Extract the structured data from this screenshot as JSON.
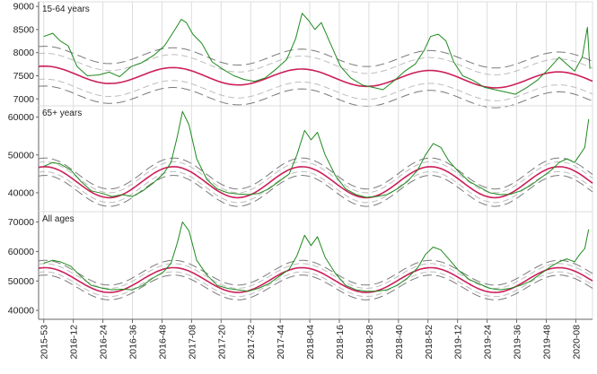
{
  "chart_data": [
    {
      "type": "line",
      "title": "15-64 years",
      "ylim": [
        6850,
        9100
      ],
      "yticks": [
        7000,
        7500,
        8000,
        8500,
        9000
      ],
      "y_tick_labels": [
        "7000",
        "7500",
        "8000",
        "8500",
        "9000"
      ],
      "baseline": {
        "mean": 7530,
        "amplitude": 180,
        "trend_per_week": -0.6
      },
      "threshold_bands": [
        {
          "kind": "inner",
          "offset": 280
        },
        {
          "kind": "outer",
          "offset": 430
        }
      ],
      "observed": [
        [
          2015.99,
          8350
        ],
        [
          2016.06,
          8420
        ],
        [
          2016.12,
          8250
        ],
        [
          2016.18,
          8150
        ],
        [
          2016.25,
          7700
        ],
        [
          2016.33,
          7500
        ],
        [
          2016.42,
          7520
        ],
        [
          2016.5,
          7580
        ],
        [
          2016.58,
          7480
        ],
        [
          2016.67,
          7700
        ],
        [
          2016.75,
          7780
        ],
        [
          2016.85,
          7950
        ],
        [
          2016.93,
          8150
        ],
        [
          2017.0,
          8450
        ],
        [
          2017.06,
          8720
        ],
        [
          2017.1,
          8650
        ],
        [
          2017.15,
          8400
        ],
        [
          2017.22,
          8200
        ],
        [
          2017.3,
          7800
        ],
        [
          2017.38,
          7650
        ],
        [
          2017.47,
          7500
        ],
        [
          2017.55,
          7420
        ],
        [
          2017.63,
          7380
        ],
        [
          2017.71,
          7450
        ],
        [
          2017.8,
          7650
        ],
        [
          2017.88,
          7850
        ],
        [
          2017.95,
          8300
        ],
        [
          2018.0,
          8850
        ],
        [
          2018.05,
          8700
        ],
        [
          2018.1,
          8500
        ],
        [
          2018.15,
          8650
        ],
        [
          2018.22,
          8200
        ],
        [
          2018.3,
          7700
        ],
        [
          2018.38,
          7450
        ],
        [
          2018.47,
          7300
        ],
        [
          2018.55,
          7250
        ],
        [
          2018.63,
          7200
        ],
        [
          2018.72,
          7400
        ],
        [
          2018.8,
          7600
        ],
        [
          2018.88,
          7750
        ],
        [
          2018.95,
          8050
        ],
        [
          2019.0,
          8350
        ],
        [
          2019.06,
          8400
        ],
        [
          2019.12,
          8250
        ],
        [
          2019.18,
          7800
        ],
        [
          2019.25,
          7500
        ],
        [
          2019.33,
          7400
        ],
        [
          2019.42,
          7250
        ],
        [
          2019.5,
          7200
        ],
        [
          2019.58,
          7150
        ],
        [
          2019.66,
          7100
        ],
        [
          2019.75,
          7250
        ],
        [
          2019.83,
          7400
        ],
        [
          2019.92,
          7650
        ],
        [
          2020.0,
          7900
        ],
        [
          2020.06,
          7750
        ],
        [
          2020.12,
          7600
        ],
        [
          2020.18,
          7900
        ],
        [
          2020.22,
          8550
        ],
        [
          2020.24,
          7650
        ]
      ]
    },
    {
      "type": "line",
      "title": "65+ years",
      "ylim": [
        35000,
        63000
      ],
      "yticks": [
        40000,
        50000,
        60000
      ],
      "y_tick_labels": [
        "40000",
        "50000",
        "60000"
      ],
      "baseline": {
        "mean": 42800,
        "amplitude": 4100,
        "trend_per_week": 0
      },
      "threshold_bands": [
        {
          "kind": "inner",
          "offset": 1300
        },
        {
          "kind": "outer",
          "offset": 2300
        }
      ],
      "observed": [
        [
          2015.99,
          47000
        ],
        [
          2016.06,
          48000
        ],
        [
          2016.12,
          47600
        ],
        [
          2016.2,
          46000
        ],
        [
          2016.28,
          43000
        ],
        [
          2016.36,
          40500
        ],
        [
          2016.45,
          39800
        ],
        [
          2016.52,
          39000
        ],
        [
          2016.6,
          39500
        ],
        [
          2016.68,
          39000
        ],
        [
          2016.76,
          40500
        ],
        [
          2016.84,
          42500
        ],
        [
          2016.92,
          45000
        ],
        [
          2016.98,
          48000
        ],
        [
          2017.03,
          55000
        ],
        [
          2017.07,
          61500
        ],
        [
          2017.12,
          58000
        ],
        [
          2017.18,
          49000
        ],
        [
          2017.26,
          43500
        ],
        [
          2017.34,
          41000
        ],
        [
          2017.42,
          40000
        ],
        [
          2017.5,
          39700
        ],
        [
          2017.58,
          39500
        ],
        [
          2017.66,
          39800
        ],
        [
          2017.74,
          41000
        ],
        [
          2017.82,
          43000
        ],
        [
          2017.9,
          45000
        ],
        [
          2017.96,
          50000
        ],
        [
          2018.02,
          56500
        ],
        [
          2018.07,
          54000
        ],
        [
          2018.12,
          56000
        ],
        [
          2018.18,
          50000
        ],
        [
          2018.26,
          44500
        ],
        [
          2018.34,
          41000
        ],
        [
          2018.42,
          39500
        ],
        [
          2018.5,
          38800
        ],
        [
          2018.58,
          39000
        ],
        [
          2018.66,
          39500
        ],
        [
          2018.74,
          41000
        ],
        [
          2018.82,
          43000
        ],
        [
          2018.9,
          46000
        ],
        [
          2018.96,
          50000
        ],
        [
          2019.02,
          53000
        ],
        [
          2019.08,
          52000
        ],
        [
          2019.14,
          48500
        ],
        [
          2019.22,
          45500
        ],
        [
          2019.3,
          43000
        ],
        [
          2019.38,
          41500
        ],
        [
          2019.46,
          40000
        ],
        [
          2019.54,
          39500
        ],
        [
          2019.62,
          39600
        ],
        [
          2019.7,
          40500
        ],
        [
          2019.78,
          42000
        ],
        [
          2019.86,
          44000
        ],
        [
          2019.94,
          46000
        ],
        [
          2020.0,
          48000
        ],
        [
          2020.06,
          49000
        ],
        [
          2020.12,
          48000
        ],
        [
          2020.16,
          50000
        ],
        [
          2020.2,
          52000
        ],
        [
          2020.23,
          59500
        ]
      ]
    },
    {
      "type": "line",
      "title": "All ages",
      "ylim": [
        37000,
        73500
      ],
      "yticks": [
        40000,
        50000,
        60000,
        70000
      ],
      "y_tick_labels": [
        "40000",
        "50000",
        "60000",
        "70000"
      ],
      "baseline": {
        "mean": 50300,
        "amplitude": 4200,
        "trend_per_week": 0
      },
      "threshold_bands": [
        {
          "kind": "inner",
          "offset": 1400
        },
        {
          "kind": "outer",
          "offset": 2500
        }
      ],
      "observed": [
        [
          2015.99,
          56000
        ],
        [
          2016.06,
          57000
        ],
        [
          2016.12,
          56500
        ],
        [
          2016.2,
          55000
        ],
        [
          2016.28,
          51500
        ],
        [
          2016.36,
          48500
        ],
        [
          2016.45,
          47500
        ],
        [
          2016.52,
          47000
        ],
        [
          2016.6,
          47200
        ],
        [
          2016.68,
          47000
        ],
        [
          2016.76,
          48500
        ],
        [
          2016.84,
          51000
        ],
        [
          2016.92,
          53000
        ],
        [
          2016.98,
          56000
        ],
        [
          2017.03,
          63000
        ],
        [
          2017.07,
          70000
        ],
        [
          2017.12,
          67000
        ],
        [
          2017.18,
          57000
        ],
        [
          2017.26,
          52000
        ],
        [
          2017.34,
          48500
        ],
        [
          2017.42,
          47500
        ],
        [
          2017.5,
          47000
        ],
        [
          2017.58,
          46500
        ],
        [
          2017.66,
          47500
        ],
        [
          2017.74,
          49000
        ],
        [
          2017.82,
          51500
        ],
        [
          2017.9,
          54000
        ],
        [
          2017.96,
          58500
        ],
        [
          2018.02,
          65500
        ],
        [
          2018.07,
          62000
        ],
        [
          2018.12,
          65000
        ],
        [
          2018.18,
          58000
        ],
        [
          2018.26,
          52500
        ],
        [
          2018.34,
          48500
        ],
        [
          2018.42,
          47000
        ],
        [
          2018.5,
          46500
        ],
        [
          2018.58,
          46500
        ],
        [
          2018.66,
          47000
        ],
        [
          2018.74,
          48500
        ],
        [
          2018.82,
          51000
        ],
        [
          2018.9,
          54500
        ],
        [
          2018.96,
          59000
        ],
        [
          2019.02,
          61500
        ],
        [
          2019.08,
          60500
        ],
        [
          2019.14,
          57500
        ],
        [
          2019.22,
          53500
        ],
        [
          2019.3,
          50500
        ],
        [
          2019.38,
          49000
        ],
        [
          2019.46,
          47500
        ],
        [
          2019.54,
          47000
        ],
        [
          2019.62,
          47500
        ],
        [
          2019.7,
          48500
        ],
        [
          2019.78,
          50000
        ],
        [
          2019.86,
          52500
        ],
        [
          2019.94,
          55000
        ],
        [
          2020.0,
          56500
        ],
        [
          2020.06,
          57500
        ],
        [
          2020.12,
          56500
        ],
        [
          2020.16,
          59000
        ],
        [
          2020.2,
          61000
        ],
        [
          2020.23,
          67500
        ]
      ]
    }
  ],
  "x_axis": {
    "range": [
      2015.95,
      2020.26
    ],
    "ticks": [
      {
        "label": "2015-53",
        "x": 2015.99
      },
      {
        "label": "2016-12",
        "x": 2016.22
      },
      {
        "label": "2016-24",
        "x": 2016.45
      },
      {
        "label": "2016-36",
        "x": 2016.68
      },
      {
        "label": "2016-48",
        "x": 2016.91
      },
      {
        "label": "2017-08",
        "x": 2017.14
      },
      {
        "label": "2017-20",
        "x": 2017.37
      },
      {
        "label": "2017-32",
        "x": 2017.6
      },
      {
        "label": "2017-44",
        "x": 2017.83
      },
      {
        "label": "2018-04",
        "x": 2018.06
      },
      {
        "label": "2018-16",
        "x": 2018.29
      },
      {
        "label": "2018-28",
        "x": 2018.52
      },
      {
        "label": "2018-40",
        "x": 2018.75
      },
      {
        "label": "2018-52",
        "x": 2018.98
      },
      {
        "label": "2019-12",
        "x": 2019.21
      },
      {
        "label": "2019-24",
        "x": 2019.44
      },
      {
        "label": "2019-36",
        "x": 2019.67
      },
      {
        "label": "2019-48",
        "x": 2019.9
      },
      {
        "label": "2020-08",
        "x": 2020.13
      }
    ]
  },
  "colors": {
    "observed": "#1e8a1e",
    "baseline": "#cc1f5a",
    "inner_band": "#bdbdbd",
    "outer_band": "#7a7a7a",
    "grid": "#dddddd",
    "axis": "#666666",
    "text": "#222222"
  }
}
